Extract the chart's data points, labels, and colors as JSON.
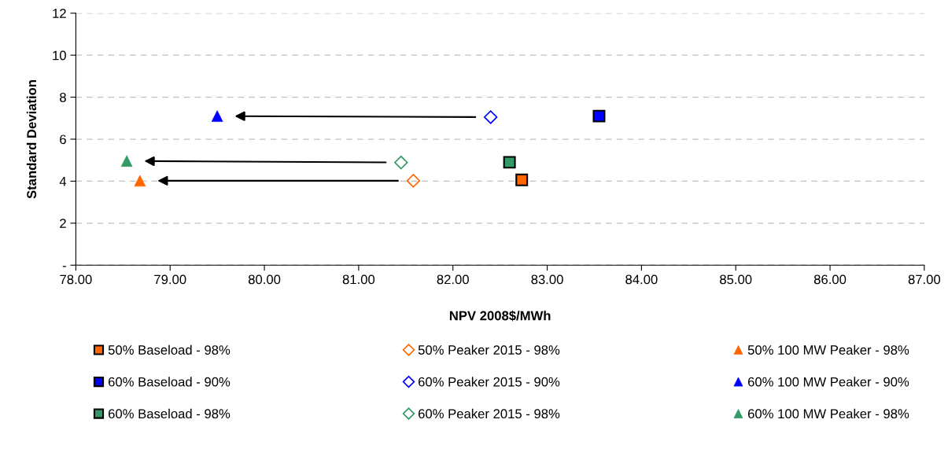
{
  "chart_data": {
    "type": "scatter",
    "xlabel": "NPV 2008$/MWh",
    "ylabel": "Standard Deviation",
    "xlim": [
      78,
      87
    ],
    "ylim": [
      0,
      12
    ],
    "xticks": [
      {
        "value": 78,
        "label": "78.00"
      },
      {
        "value": 79,
        "label": "79.00"
      },
      {
        "value": 80,
        "label": "80.00"
      },
      {
        "value": 81,
        "label": "81.00"
      },
      {
        "value": 82,
        "label": "82.00"
      },
      {
        "value": 83,
        "label": "83.00"
      },
      {
        "value": 84,
        "label": "84.00"
      },
      {
        "value": 85,
        "label": "85.00"
      },
      {
        "value": 86,
        "label": "86.00"
      },
      {
        "value": 87,
        "label": "87.00"
      }
    ],
    "yticks": [
      {
        "value": 0,
        "label": "-"
      },
      2,
      4,
      6,
      8,
      10,
      12
    ],
    "grid": "y",
    "legend": "bottom",
    "series": [
      {
        "name": "50% Baseload - 98%",
        "color": "#ff6600",
        "marker": "square",
        "x": [
          82.73
        ],
        "values": [
          4.06
        ]
      },
      {
        "name": "50% Peaker 2015 - 98%",
        "color": "#ff6600",
        "marker": "diamond",
        "x": [
          81.58
        ],
        "values": [
          4.02
        ]
      },
      {
        "name": "50% 100 MW Peaker - 98%",
        "color": "#ff6600",
        "marker": "triangle",
        "x": [
          78.68
        ],
        "values": [
          4.02
        ]
      },
      {
        "name": "60% Baseload - 90%",
        "color": "#0000ff",
        "marker": "square",
        "x": [
          83.55
        ],
        "values": [
          7.1
        ]
      },
      {
        "name": "60% Peaker 2015 - 90%",
        "color": "#0000ff",
        "marker": "diamond",
        "x": [
          82.4
        ],
        "values": [
          7.05
        ]
      },
      {
        "name": "60% 100 MW Peaker - 90%",
        "color": "#0000ff",
        "marker": "triangle",
        "x": [
          79.5
        ],
        "values": [
          7.1
        ]
      },
      {
        "name": "60% Baseload - 98%",
        "color": "#339966",
        "marker": "square",
        "x": [
          82.6
        ],
        "values": [
          4.9
        ]
      },
      {
        "name": "60% Peaker 2015 - 98%",
        "color": "#339966",
        "marker": "diamond",
        "x": [
          81.45
        ],
        "values": [
          4.89
        ]
      },
      {
        "name": "60% 100 MW Peaker - 98%",
        "color": "#339966",
        "marker": "triangle",
        "x": [
          78.54
        ],
        "values": [
          4.96
        ]
      }
    ]
  }
}
